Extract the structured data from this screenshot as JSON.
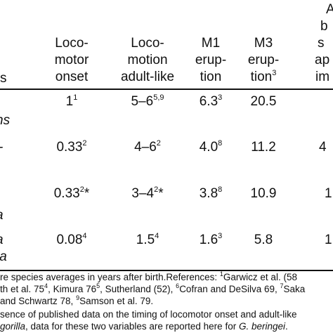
{
  "headers": {
    "col1": [
      "Loco-",
      "motor",
      "onset"
    ],
    "col2": [
      "Loco-",
      "motion",
      "adult-like"
    ],
    "col3": {
      "lines": [
        "M1",
        "erup-",
        "tion"
      ],
      "sup": ""
    },
    "col4": {
      "lines": [
        "M3",
        "erup-",
        "tion"
      ],
      "sup": "3"
    },
    "col5": [
      "A",
      "b",
      "s",
      "ap",
      "im"
    ],
    "row_label": "s"
  },
  "species": {
    "r1": "ns",
    "r1b": "-",
    "r3": "a",
    "r4a": "a",
    "r4b": "ta"
  },
  "rows": [
    {
      "c1": "1",
      "c1s": "1",
      "c2": "5–6",
      "c2s": "5,9",
      "c3": "6.3",
      "c3s": "3",
      "c4": "20.5",
      "c5": ""
    },
    {
      "c1": "0.33",
      "c1s": "2",
      "c2": "4–6",
      "c2s": "2",
      "c3": "4.0",
      "c3s": "8",
      "c4": "11.2",
      "c5": "4"
    },
    {
      "c1": "0.33",
      "c1s": "2",
      "c1t": "*",
      "c2": "3–4",
      "c2s": "2",
      "c2t": "*",
      "c3": "3.8",
      "c3s": "8",
      "c4": "10.9",
      "c5": "1"
    },
    {
      "c1": "0.08",
      "c1s": "4",
      "c2": "1.5",
      "c2s": "4",
      "c3": "1.6",
      "c3s": "3",
      "c4": "5.8",
      "c5": "1"
    }
  ],
  "notes": {
    "line1_a": "re species averages in years after birth.References: ",
    "line1_s1": "1",
    "line1_b": "Garwicz et al. (58",
    "line2_a": "th et al. 75",
    "line2_s1": "4",
    "line2_b": ", Kimura 76",
    "line2_s2": "5",
    "line2_c": ", Sutherland (52), ",
    "line2_s3": "6",
    "line2_d": "Cofran and DeSilva 69, ",
    "line2_s4": "7",
    "line2_e": "Saka",
    "line3_a": "and Schwartz 78, ",
    "line3_s1": "9",
    "line3_b": "Samson et al. 79.",
    "line4": "sence of published data on the timing of locomotor onset and adult-like",
    "line5_italic": "gorilla",
    "line5_rest": ", data for these two variables are reported here for ",
    "line5_italic2": "G. beringei",
    "line5_end": "."
  }
}
